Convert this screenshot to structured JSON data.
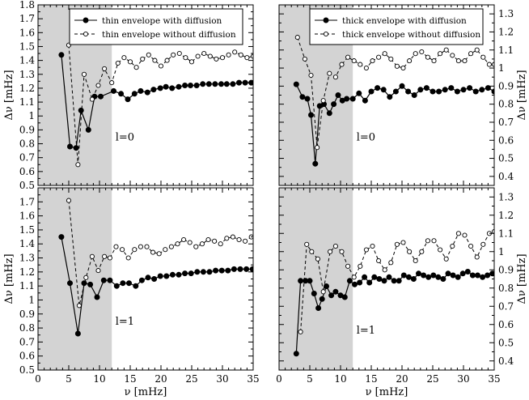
{
  "figure": {
    "xlabel": "ν [mHz]",
    "ylabel_left": "Δν [mHz]",
    "ylabel_right": "Δν [mHz]",
    "shade_x_range": [
      0,
      12
    ],
    "shade_color": "#d3d3d3"
  },
  "chart_data": [
    {
      "id": "top-left",
      "type": "line",
      "panel_label": "l=0",
      "xlim": [
        0,
        35
      ],
      "ylim": [
        0.5,
        1.8
      ],
      "xticks": [
        0,
        5,
        10,
        15,
        20,
        25,
        30,
        35
      ],
      "yticks": [
        0.5,
        0.6,
        0.7,
        0.8,
        0.9,
        1.0,
        1.1,
        1.2,
        1.3,
        1.4,
        1.5,
        1.6,
        1.7,
        1.8
      ],
      "ytick_labels": [
        "0.5",
        "0.6",
        "0.7",
        "0.8",
        "0.9",
        "1",
        "1.1",
        "1.2",
        "1.3",
        "1.4",
        "1.5",
        "1.6",
        "1.7",
        "1.8"
      ],
      "ylabel": "Δν [mHz]",
      "yaxis_side": "left",
      "legend": [
        "thin envelope with diffusion",
        "thin envelope without diffusion"
      ],
      "series": [
        {
          "name": "thin envelope with diffusion",
          "style": "solid-filled",
          "x": [
            3.8,
            5.2,
            6.2,
            7.0,
            8.2,
            9.2,
            10.2,
            12.3,
            13.5,
            14.6,
            15.7,
            16.7,
            17.8,
            18.8,
            19.9,
            20.8,
            21.8,
            22.9,
            23.9,
            24.8,
            25.8,
            26.8,
            27.8,
            28.8,
            29.8,
            30.7,
            31.7,
            32.7,
            33.7,
            34.7
          ],
          "y": [
            1.44,
            0.78,
            0.77,
            1.04,
            0.9,
            1.14,
            1.14,
            1.18,
            1.16,
            1.12,
            1.16,
            1.18,
            1.17,
            1.19,
            1.2,
            1.21,
            1.2,
            1.21,
            1.22,
            1.22,
            1.22,
            1.23,
            1.23,
            1.23,
            1.23,
            1.23,
            1.23,
            1.24,
            1.24,
            1.24
          ]
        },
        {
          "name": "thin envelope without diffusion",
          "style": "dashed-open",
          "x": [
            5.0,
            6.5,
            7.5,
            8.8,
            9.8,
            10.8,
            12.0,
            13.0,
            14.0,
            15.0,
            16.0,
            17.0,
            18.0,
            19.0,
            20.0,
            21.0,
            22.0,
            23.0,
            24.0,
            25.0,
            26.0,
            27.0,
            28.0,
            29.0,
            30.0,
            31.0,
            32.0,
            33.0,
            34.0,
            35.0
          ],
          "y": [
            1.51,
            0.65,
            1.3,
            1.12,
            1.22,
            1.34,
            1.24,
            1.38,
            1.42,
            1.39,
            1.35,
            1.41,
            1.44,
            1.4,
            1.36,
            1.4,
            1.44,
            1.45,
            1.42,
            1.39,
            1.43,
            1.45,
            1.43,
            1.41,
            1.42,
            1.44,
            1.46,
            1.44,
            1.42,
            1.43
          ]
        }
      ]
    },
    {
      "id": "top-right",
      "type": "line",
      "panel_label": "l=0",
      "xlim": [
        0,
        35
      ],
      "ylim": [
        0.35,
        1.35
      ],
      "xticks": [
        0,
        5,
        10,
        15,
        20,
        25,
        30,
        35
      ],
      "yticks": [
        0.4,
        0.5,
        0.6,
        0.7,
        0.8,
        0.9,
        1.0,
        1.1,
        1.2,
        1.3
      ],
      "ytick_labels": [
        "0.4",
        "0.5",
        "0.6",
        "0.7",
        "0.8",
        "0.9",
        "1",
        "1.1",
        "1.2",
        "1.3"
      ],
      "ylabel": "Δν [mHz]",
      "yaxis_side": "right",
      "legend": [
        "thick envelope with diffusion",
        "thick envelope without diffusion"
      ],
      "series": [
        {
          "name": "thick envelope with diffusion",
          "style": "solid-filled",
          "x": [
            2.8,
            3.8,
            4.6,
            5.2,
            5.9,
            6.6,
            7.3,
            8.2,
            8.9,
            9.6,
            10.3,
            11.0,
            12.0,
            13.0,
            14.0,
            15.0,
            16.0,
            17.0,
            18.0,
            19.0,
            20.0,
            21.0,
            22.0,
            23.0,
            24.0,
            25.0,
            26.0,
            27.0,
            28.0,
            29.0,
            30.0,
            31.0,
            32.0,
            33.0,
            34.0,
            35.0
          ],
          "y": [
            0.91,
            0.84,
            0.83,
            0.74,
            0.47,
            0.79,
            0.8,
            0.75,
            0.8,
            0.85,
            0.82,
            0.83,
            0.83,
            0.86,
            0.82,
            0.87,
            0.89,
            0.88,
            0.84,
            0.87,
            0.9,
            0.87,
            0.85,
            0.88,
            0.89,
            0.87,
            0.87,
            0.88,
            0.89,
            0.87,
            0.88,
            0.89,
            0.87,
            0.88,
            0.89,
            0.87
          ]
        },
        {
          "name": "thick envelope without diffusion",
          "style": "dashed-open",
          "x": [
            3.0,
            4.2,
            5.2,
            6.2,
            7.2,
            8.2,
            9.2,
            10.2,
            11.2,
            12.2,
            13.2,
            14.2,
            15.2,
            16.2,
            17.2,
            18.2,
            19.2,
            20.2,
            21.2,
            22.2,
            23.2,
            24.2,
            25.2,
            26.2,
            27.2,
            28.2,
            29.2,
            30.2,
            31.2,
            32.2,
            33.2,
            34.2,
            35.0
          ],
          "y": [
            1.17,
            1.05,
            0.96,
            0.56,
            0.82,
            0.97,
            0.95,
            1.02,
            1.06,
            1.04,
            1.02,
            1.0,
            1.04,
            1.06,
            1.08,
            1.05,
            1.01,
            1.0,
            1.04,
            1.08,
            1.09,
            1.06,
            1.04,
            1.08,
            1.1,
            1.07,
            1.04,
            1.04,
            1.08,
            1.1,
            1.06,
            1.02,
            1.02
          ]
        }
      ]
    },
    {
      "id": "bottom-left",
      "type": "line",
      "panel_label": "l=1",
      "xlim": [
        0,
        35
      ],
      "ylim": [
        0.5,
        1.8
      ],
      "xticks": [
        0,
        5,
        10,
        15,
        20,
        25,
        30,
        35
      ],
      "xtick_labels": [
        "0",
        "5",
        "10",
        "15",
        "20",
        "25",
        "30",
        "35"
      ],
      "yticks": [
        0.5,
        0.6,
        0.7,
        0.8,
        0.9,
        1.0,
        1.1,
        1.2,
        1.3,
        1.4,
        1.5,
        1.6,
        1.7
      ],
      "ytick_labels": [
        "0.5",
        "0.6",
        "0.7",
        "0.8",
        "0.9",
        "1",
        "1.1",
        "1.2",
        "1.3",
        "1.4",
        "1.5",
        "1.6",
        "1.7"
      ],
      "ylabel": "Δν [mHz]",
      "yaxis_side": "left",
      "series": [
        {
          "name": "thin envelope with diffusion",
          "style": "solid-filled",
          "x": [
            3.8,
            5.2,
            6.5,
            7.5,
            8.5,
            9.6,
            10.7,
            11.7,
            12.8,
            13.8,
            14.8,
            15.9,
            16.9,
            17.9,
            18.9,
            19.9,
            20.9,
            21.9,
            22.9,
            23.9,
            24.9,
            25.9,
            26.9,
            27.9,
            28.9,
            29.9,
            30.9,
            31.9,
            32.9,
            33.9,
            34.9
          ],
          "y": [
            1.45,
            1.12,
            0.76,
            1.12,
            1.11,
            1.02,
            1.14,
            1.14,
            1.1,
            1.12,
            1.12,
            1.1,
            1.14,
            1.16,
            1.15,
            1.17,
            1.17,
            1.18,
            1.18,
            1.19,
            1.19,
            1.2,
            1.2,
            1.2,
            1.21,
            1.21,
            1.21,
            1.22,
            1.22,
            1.22,
            1.22
          ]
        },
        {
          "name": "thin envelope without diffusion",
          "style": "dashed-open",
          "x": [
            5.0,
            6.7,
            7.8,
            8.8,
            9.8,
            10.8,
            11.7,
            12.7,
            13.7,
            14.7,
            15.7,
            16.7,
            17.7,
            18.7,
            19.7,
            20.7,
            21.7,
            22.7,
            23.7,
            24.7,
            25.7,
            26.7,
            27.7,
            28.7,
            29.7,
            30.7,
            31.7,
            32.7,
            33.7,
            34.7
          ],
          "y": [
            1.71,
            0.96,
            1.16,
            1.31,
            1.21,
            1.31,
            1.3,
            1.38,
            1.36,
            1.3,
            1.36,
            1.38,
            1.38,
            1.34,
            1.33,
            1.36,
            1.38,
            1.4,
            1.43,
            1.41,
            1.38,
            1.4,
            1.43,
            1.42,
            1.4,
            1.44,
            1.45,
            1.43,
            1.42,
            1.45
          ]
        }
      ]
    },
    {
      "id": "bottom-right",
      "type": "line",
      "panel_label": "l=1",
      "xlim": [
        0,
        35
      ],
      "ylim": [
        0.35,
        1.35
      ],
      "xticks": [
        0,
        5,
        10,
        15,
        20,
        25,
        30,
        35
      ],
      "xtick_labels": [
        "0",
        "5",
        "10",
        "15",
        "20",
        "25",
        "30",
        "35"
      ],
      "yticks": [
        0.4,
        0.5,
        0.6,
        0.7,
        0.8,
        0.9,
        1.0,
        1.1,
        1.2,
        1.3
      ],
      "ytick_labels": [
        "0.4",
        "0.5",
        "0.6",
        "0.7",
        "0.8",
        "0.9",
        "1",
        "1.1",
        "1.2",
        "1.3"
      ],
      "ylabel": "Δν [mHz]",
      "yaxis_side": "right",
      "series": [
        {
          "name": "thick envelope with diffusion",
          "style": "solid-filled",
          "x": [
            2.8,
            3.5,
            4.3,
            5.0,
            5.7,
            6.4,
            7.0,
            7.7,
            8.5,
            9.2,
            10.0,
            10.7,
            11.5,
            12.3,
            13.1,
            13.9,
            14.7,
            15.5,
            16.3,
            17.1,
            17.9,
            18.7,
            19.5,
            20.3,
            21.1,
            21.9,
            22.7,
            23.5,
            24.3,
            25.1,
            25.9,
            26.7,
            27.5,
            28.3,
            29.1,
            29.9,
            30.7,
            31.5,
            32.3,
            33.1,
            33.9,
            34.7
          ],
          "y": [
            0.44,
            0.84,
            0.84,
            0.84,
            0.77,
            0.69,
            0.74,
            0.81,
            0.76,
            0.78,
            0.76,
            0.75,
            0.84,
            0.82,
            0.83,
            0.86,
            0.83,
            0.86,
            0.85,
            0.84,
            0.86,
            0.84,
            0.84,
            0.87,
            0.86,
            0.85,
            0.88,
            0.87,
            0.86,
            0.87,
            0.86,
            0.85,
            0.88,
            0.87,
            0.86,
            0.88,
            0.89,
            0.87,
            0.87,
            0.86,
            0.87,
            0.88
          ]
        },
        {
          "name": "thick envelope without diffusion",
          "style": "dashed-open",
          "x": [
            3.5,
            4.5,
            5.3,
            6.3,
            7.2,
            8.3,
            9.2,
            10.2,
            11.2,
            12.2,
            13.2,
            14.2,
            15.2,
            16.2,
            17.2,
            18.2,
            19.2,
            20.2,
            21.2,
            22.2,
            23.2,
            24.2,
            25.2,
            26.2,
            27.2,
            28.2,
            29.2,
            30.2,
            31.2,
            32.2,
            33.2,
            34.2,
            35.0
          ],
          "y": [
            0.56,
            1.04,
            1.0,
            0.96,
            0.78,
            1.0,
            1.03,
            1.0,
            0.92,
            0.86,
            0.92,
            1.01,
            1.03,
            0.95,
            0.9,
            0.94,
            1.04,
            1.05,
            1.0,
            0.95,
            1.0,
            1.06,
            1.06,
            1.01,
            0.96,
            1.03,
            1.1,
            1.09,
            1.03,
            0.97,
            1.04,
            1.1,
            1.11
          ]
        }
      ]
    }
  ]
}
